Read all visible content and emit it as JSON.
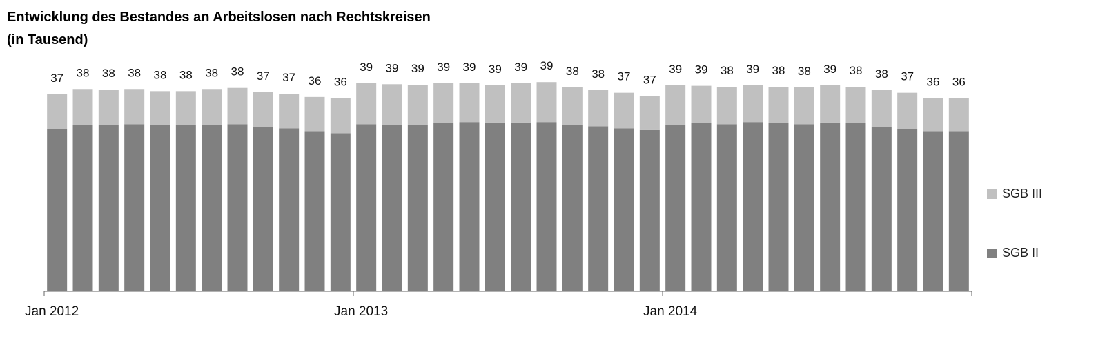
{
  "chart_data": {
    "type": "bar",
    "stacked": true,
    "title": "Entwicklung des Bestandes an Arbeitslosen nach Rechtskreisen",
    "subtitle": "(in Tausend)",
    "xlabel": "",
    "ylabel": "",
    "x_tick_labels": [
      "Jan 2012",
      "Jan 2013",
      "Jan 2014"
    ],
    "months": 36,
    "ylim": [
      0,
      40
    ],
    "grid": false,
    "legend_position": "right",
    "series": [
      {
        "name": "SGB II",
        "color": "#808080",
        "values": [
          30.5,
          31.3,
          31.3,
          31.4,
          31.3,
          31.2,
          31.2,
          31.4,
          30.8,
          30.6,
          30.1,
          29.7,
          31.4,
          31.3,
          31.3,
          31.6,
          31.8,
          31.7,
          31.7,
          31.8,
          31.2,
          31.0,
          30.6,
          30.3,
          31.3,
          31.6,
          31.4,
          31.8,
          31.6,
          31.4,
          31.7,
          31.6,
          30.8,
          30.4,
          30.1,
          30.1
        ]
      },
      {
        "name": "SGB III",
        "color": "#c0c0c0",
        "values": [
          6.5,
          6.7,
          6.6,
          6.6,
          6.3,
          6.4,
          6.8,
          6.8,
          6.6,
          6.5,
          6.4,
          6.6,
          7.7,
          7.6,
          7.5,
          7.5,
          7.3,
          7.0,
          7.4,
          7.5,
          7.1,
          6.8,
          6.7,
          6.4,
          7.4,
          7.0,
          7.0,
          6.9,
          6.8,
          6.9,
          7.0,
          6.8,
          7.0,
          6.9,
          6.2,
          6.2
        ]
      }
    ],
    "total_labels": [
      "37",
      "38",
      "38",
      "38",
      "38",
      "38",
      "38",
      "38",
      "37",
      "37",
      "36",
      "36",
      "39",
      "39",
      "39",
      "39",
      "39",
      "39",
      "39",
      "39",
      "38",
      "38",
      "37",
      "37",
      "39",
      "39",
      "38",
      "39",
      "38",
      "38",
      "39",
      "38",
      "38",
      "37",
      "36",
      "36"
    ]
  }
}
